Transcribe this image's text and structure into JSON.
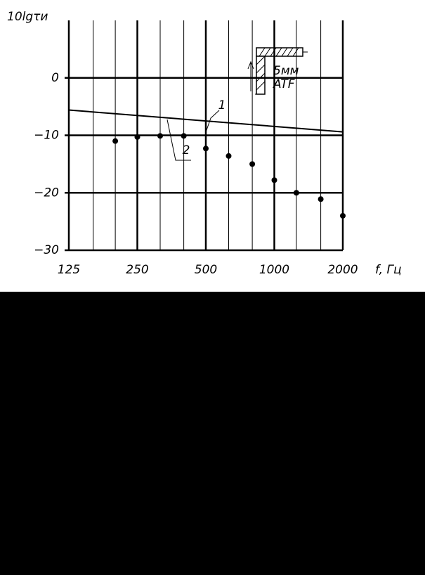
{
  "chart_data": {
    "type": "line",
    "y_label": "10lgτи",
    "x_label": "f, Гц",
    "annotations": [
      "5мм",
      "ATF"
    ],
    "log_x": true,
    "xlim": [
      125,
      2000
    ],
    "xticks": [
      125,
      250,
      500,
      1000,
      2000
    ],
    "minor_xticks": [
      160,
      200,
      315,
      400,
      630,
      800,
      1250,
      1600
    ],
    "ylim": [
      -30,
      10
    ],
    "yticks": [
      {
        "value": 0,
        "label": "0"
      },
      {
        "value": -10,
        "label": "−10"
      },
      {
        "value": -20,
        "label": "−20"
      },
      {
        "value": -30,
        "label": "−30"
      }
    ],
    "grid": true,
    "series": [
      {
        "name": "1",
        "type": "line",
        "color": "#000000",
        "x": [
          125,
          2000
        ],
        "values": [
          -5.6,
          -9.4
        ]
      },
      {
        "name": "2",
        "type": "scatter",
        "color": "#000000",
        "x": [
          200,
          250,
          315,
          400,
          500,
          630,
          800,
          1000,
          1250,
          1600,
          2000
        ],
        "values": [
          -11.0,
          -10.3,
          -10.1,
          -10.1,
          -12.3,
          -13.6,
          -15.0,
          -17.8,
          -20.0,
          -21.1,
          -24.0
        ]
      }
    ]
  }
}
